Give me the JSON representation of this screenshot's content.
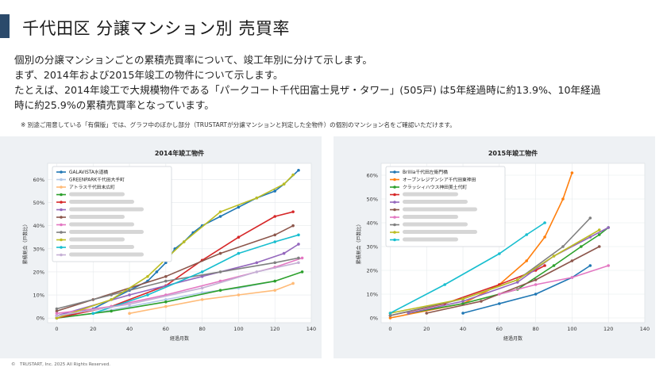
{
  "header": {
    "title": "千代田区 分譲マンション別 売買率"
  },
  "description": {
    "line1": "個別の分譲マンションごとの累積売買率について、竣工年別に分けて示します。",
    "line2": "まず、2014年および2015年竣工の物件について示します。",
    "line3": "たとえば、2014年竣工で大規模物件である「パークコート千代田富士見ザ・タワー」(505戸) は5年経過時に約13.9%、10年経過",
    "line4": "時に約25.9%の累積売買率となっています。",
    "note": "※ 別途ご用意している「有償版」では、グラフ中のぼかし部分（TRUSTARTが分譲マンションと判定した全物件）の個別のマンション名をご確認いただけます。"
  },
  "footer": {
    "copyright": "©　TRUSTART, Inc. 2025 All Rights Reserved."
  },
  "colors": {
    "accent": "#2b4a6b"
  },
  "chart_data": [
    {
      "type": "line",
      "title": "2014年竣工物件",
      "xlabel": "経過月数",
      "ylabel": "累積割合（戸数比）",
      "xlim": [
        -5,
        140
      ],
      "ylim": [
        -2,
        67
      ],
      "x_ticks": [
        0,
        20,
        40,
        60,
        80,
        100,
        120,
        140
      ],
      "y_ticks": [
        0,
        10,
        20,
        30,
        40,
        50,
        60
      ],
      "x_tick_labels": [
        "0",
        "20",
        "40",
        "60",
        "80",
        "100",
        "120",
        "140"
      ],
      "y_tick_labels": [
        "0%",
        "10%",
        "20%",
        "30%",
        "40%",
        "50%",
        "60%"
      ],
      "legend": [
        "GALAVISTA水道橋",
        "GREENPARK千代田大手町",
        "アトラス千代田末広町"
      ],
      "series": [
        {
          "name": "GALAVISTA水道橋",
          "color": "#1f77b4",
          "x": [
            0,
            10,
            20,
            30,
            40,
            50,
            55,
            60,
            65,
            70,
            75,
            80,
            90,
            100,
            110,
            120,
            125,
            133
          ],
          "y": [
            1,
            2,
            4,
            8,
            12,
            16,
            20,
            24,
            30,
            33,
            37,
            40,
            44,
            48,
            52,
            55,
            58,
            64
          ]
        },
        {
          "name": "GREENPARK千代田大手町",
          "color": "#aec7e8",
          "x": [
            0,
            20,
            40,
            60,
            80,
            100,
            120
          ],
          "y": [
            0,
            2,
            5,
            8,
            11,
            13,
            16
          ]
        },
        {
          "name": "アトラス千代田末広町",
          "color": "#ffbb78",
          "x": [
            40,
            60,
            80,
            100,
            120,
            130
          ],
          "y": [
            2,
            5,
            8,
            10,
            12,
            15
          ]
        },
        {
          "name": "",
          "color": "#2ca02c",
          "x": [
            0,
            30,
            60,
            90,
            120,
            135
          ],
          "y": [
            0,
            3,
            7,
            12,
            16,
            20
          ]
        },
        {
          "name": "",
          "color": "#d62728",
          "x": [
            0,
            30,
            60,
            80,
            100,
            120,
            130
          ],
          "y": [
            0,
            5,
            14,
            25,
            35,
            44,
            46
          ]
        },
        {
          "name": "",
          "color": "#9467bd",
          "x": [
            0,
            40,
            80,
            110,
            125,
            133
          ],
          "y": [
            1,
            10,
            18,
            24,
            28,
            32
          ]
        },
        {
          "name": "",
          "color": "#8c564b",
          "x": [
            0,
            20,
            60,
            90,
            120,
            130
          ],
          "y": [
            3,
            8,
            18,
            28,
            36,
            40
          ]
        },
        {
          "name": "",
          "color": "#e377c2",
          "x": [
            0,
            30,
            60,
            90,
            120,
            135
          ],
          "y": [
            2,
            5,
            10,
            16,
            22,
            26
          ]
        },
        {
          "name": "",
          "color": "#7f7f7f",
          "x": [
            0,
            30,
            60,
            90,
            120,
            133
          ],
          "y": [
            4,
            10,
            16,
            20,
            24,
            26
          ]
        },
        {
          "name": "",
          "color": "#bcbd22",
          "x": [
            0,
            30,
            50,
            70,
            90,
            110,
            125,
            130
          ],
          "y": [
            0,
            8,
            18,
            33,
            46,
            52,
            58,
            62
          ]
        },
        {
          "name": "",
          "color": "#17becf",
          "x": [
            20,
            50,
            80,
            100,
            120,
            133
          ],
          "y": [
            2,
            10,
            20,
            28,
            33,
            36
          ]
        },
        {
          "name": "",
          "color": "#c5b0d5",
          "x": [
            0,
            40,
            80,
            110,
            133
          ],
          "y": [
            1,
            6,
            13,
            20,
            24
          ]
        }
      ]
    },
    {
      "type": "line",
      "title": "2015年竣工物件",
      "xlabel": "経過月数",
      "ylabel": "累積割合（戸数比）",
      "xlim": [
        -5,
        140
      ],
      "ylim": [
        -2,
        65
      ],
      "x_ticks": [
        0,
        20,
        40,
        60,
        80,
        100,
        120,
        140
      ],
      "y_ticks": [
        0,
        10,
        20,
        30,
        40,
        50,
        60
      ],
      "x_tick_labels": [
        "0",
        "20",
        "40",
        "60",
        "80",
        "100",
        "120",
        "140"
      ],
      "y_tick_labels": [
        "0%",
        "10%",
        "20%",
        "30%",
        "40%",
        "50%",
        "60%"
      ],
      "legend": [
        "Brillia千代田左衛門橋",
        "オープンレジデンシア千代田東神田",
        "クラッシィハウス神田美土代町"
      ],
      "series": [
        {
          "name": "Brillia千代田左衛門橋",
          "color": "#1f77b4",
          "x": [
            40,
            60,
            80,
            100,
            110
          ],
          "y": [
            2,
            6,
            10,
            17,
            22
          ]
        },
        {
          "name": "オープンレジデンシア千代田東神田",
          "color": "#ff7f0e",
          "x": [
            0,
            40,
            60,
            75,
            85,
            95,
            100
          ],
          "y": [
            0,
            6,
            14,
            24,
            34,
            50,
            61
          ]
        },
        {
          "name": "クラッシィハウス神田美土代町",
          "color": "#2ca02c",
          "x": [
            10,
            40,
            70,
            90,
            105,
            115,
            120
          ],
          "y": [
            2,
            6,
            12,
            22,
            30,
            35,
            38
          ]
        },
        {
          "name": "",
          "color": "#d62728",
          "x": [
            0,
            30,
            60,
            80,
            85
          ],
          "y": [
            1,
            6,
            14,
            20,
            22
          ]
        },
        {
          "name": "",
          "color": "#9467bd",
          "x": [
            10,
            40,
            70,
            90,
            110,
            120
          ],
          "y": [
            2,
            7,
            15,
            26,
            34,
            38
          ]
        },
        {
          "name": "",
          "color": "#8c564b",
          "x": [
            20,
            50,
            80,
            100,
            115
          ],
          "y": [
            2,
            7,
            16,
            24,
            30
          ]
        },
        {
          "name": "",
          "color": "#e377c2",
          "x": [
            60,
            80,
            100,
            120
          ],
          "y": [
            10,
            14,
            17,
            22
          ]
        },
        {
          "name": "",
          "color": "#7f7f7f",
          "x": [
            0,
            40,
            70,
            95,
            110
          ],
          "y": [
            1,
            8,
            16,
            30,
            42
          ]
        },
        {
          "name": "",
          "color": "#bcbd22",
          "x": [
            0,
            40,
            70,
            90,
            115
          ],
          "y": [
            2,
            8,
            16,
            26,
            37
          ]
        },
        {
          "name": "",
          "color": "#17becf",
          "x": [
            0,
            30,
            60,
            75,
            85
          ],
          "y": [
            2,
            14,
            27,
            35,
            40
          ]
        }
      ]
    }
  ]
}
